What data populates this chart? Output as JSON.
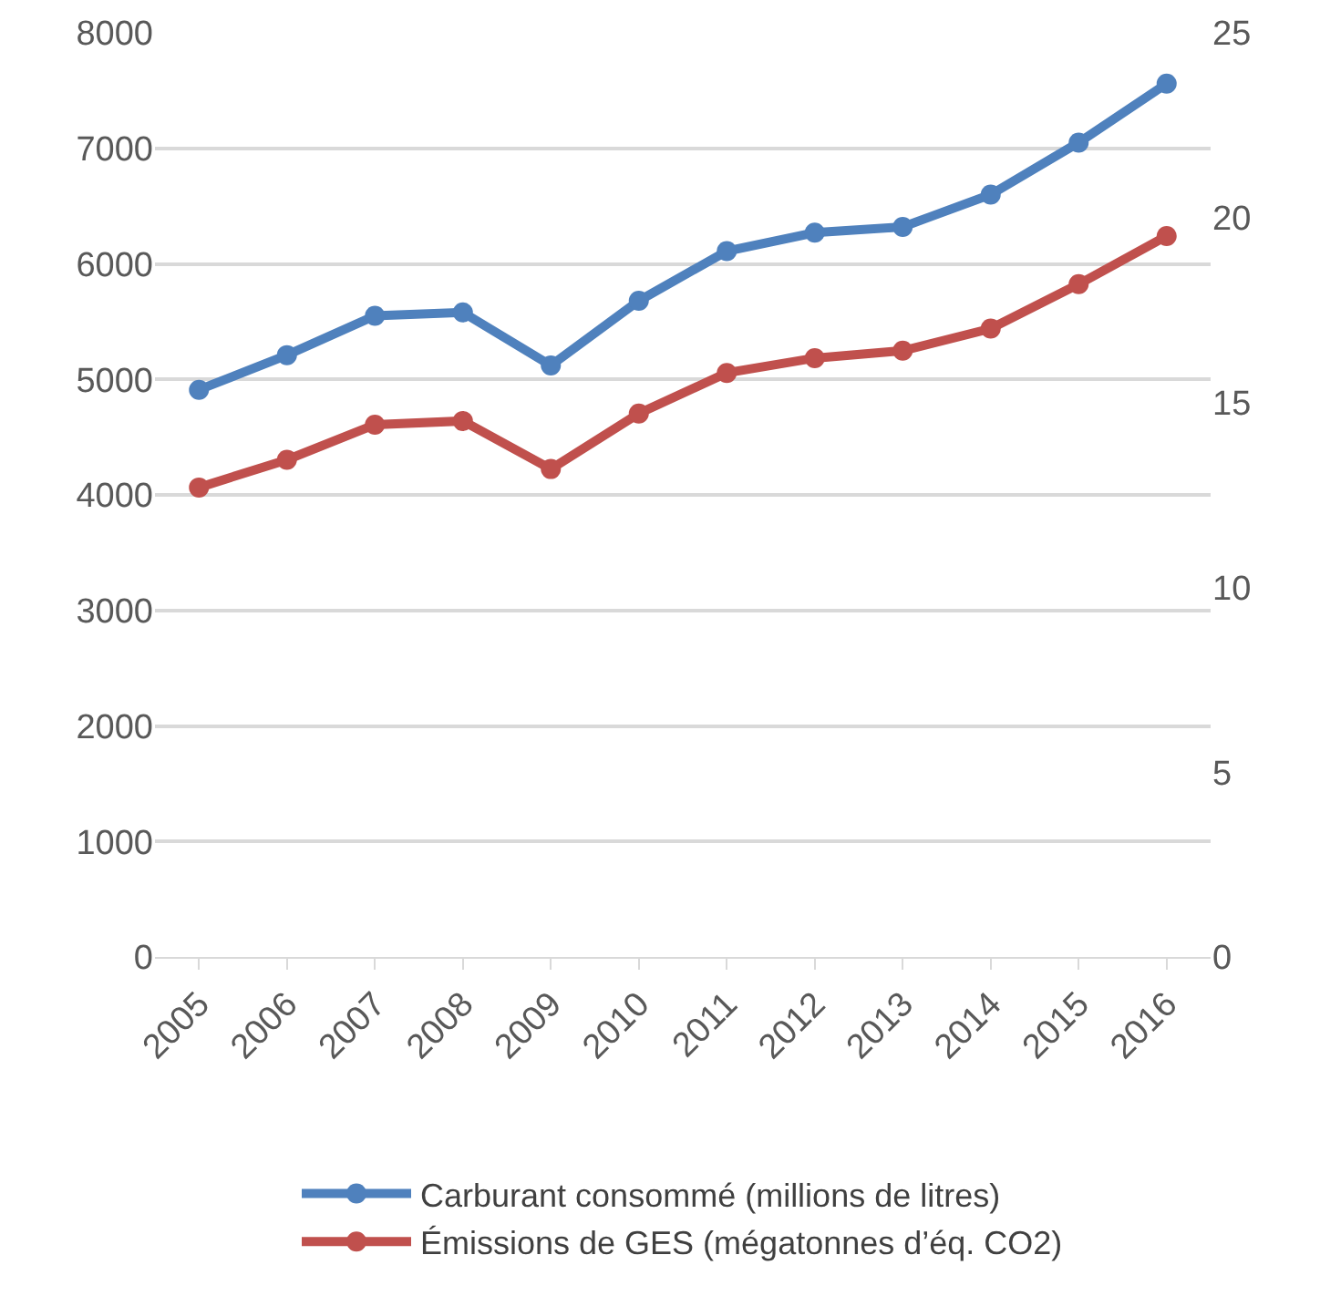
{
  "chart_data": {
    "type": "line",
    "categories": [
      "2005",
      "2006",
      "2007",
      "2008",
      "2009",
      "2010",
      "2011",
      "2012",
      "2013",
      "2014",
      "2015",
      "2016"
    ],
    "series": [
      {
        "name": "Carburant consommé (millions de litres)",
        "color": "#4f81bd",
        "values": [
          4910,
          5210,
          5550,
          5580,
          5120,
          5680,
          6110,
          6270,
          6320,
          6600,
          7050,
          7560
        ]
      },
      {
        "name": "Émissions de GES (mégatonnes d’éq. CO2)",
        "color": "#c0504d",
        "axis": "y2",
        "values": [
          12.7,
          13.45,
          14.4,
          14.5,
          13.2,
          14.7,
          15.8,
          16.2,
          16.4,
          17.0,
          18.2,
          19.5
        ]
      }
    ],
    "ylim": [
      0,
      8000
    ],
    "yticks": [
      0,
      1000,
      2000,
      3000,
      4000,
      5000,
      6000,
      7000,
      8000
    ],
    "y2lim": [
      0,
      25
    ],
    "y2ticks": [
      0,
      5,
      10,
      15,
      20,
      25
    ],
    "grid": "y",
    "legend": "bottom",
    "marker": "circle",
    "line_style": "solid"
  }
}
